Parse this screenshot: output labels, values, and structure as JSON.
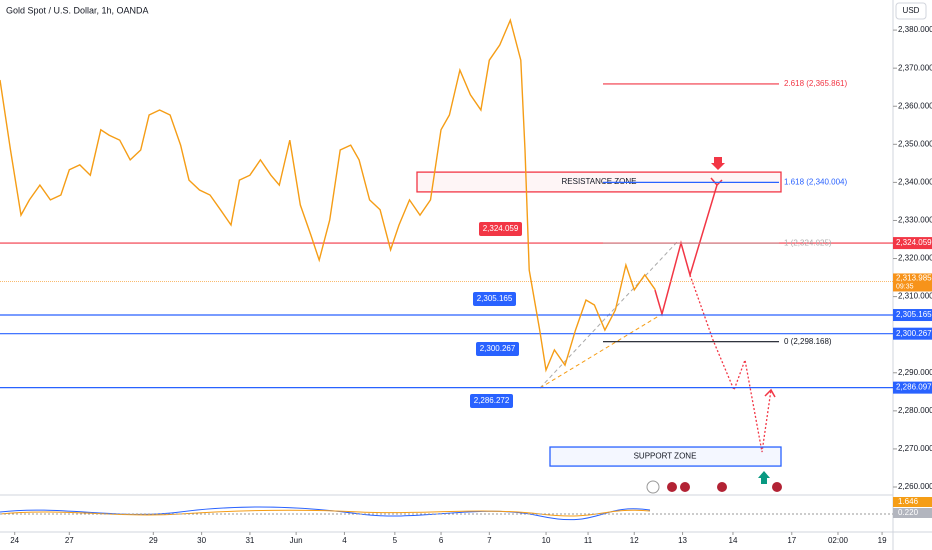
{
  "header": {
    "symbol": "Gold Spot / U.S. Dollar, 1h, OANDA",
    "currency": "USD"
  },
  "chart_data": {
    "type": "line",
    "xlim": [
      0,
      425.2
    ],
    "ylim": [
      2257.9,
      2387.9
    ],
    "xticks": [
      {
        "value": 7,
        "label": "24"
      },
      {
        "value": 33,
        "label": "27"
      },
      {
        "value": 73,
        "label": "29"
      },
      {
        "value": 96,
        "label": "30"
      },
      {
        "value": 119,
        "label": "31"
      },
      {
        "value": 141,
        "label": "Jun"
      },
      {
        "value": 164,
        "label": "4"
      },
      {
        "value": 188,
        "label": "5"
      },
      {
        "value": 210,
        "label": "6"
      },
      {
        "value": 233,
        "label": "7"
      },
      {
        "value": 260,
        "label": "10"
      },
      {
        "value": 280,
        "label": "11"
      },
      {
        "value": 302,
        "label": "12"
      },
      {
        "value": 325,
        "label": "13"
      },
      {
        "value": 349,
        "label": "14"
      },
      {
        "value": 377,
        "label": "17"
      },
      {
        "value": 399,
        "label": "02:00"
      },
      {
        "value": 420,
        "label": "19"
      }
    ],
    "yticks": [
      {
        "value": 2260,
        "label": "2,260.000"
      },
      {
        "value": 2270,
        "label": "2,270.000"
      },
      {
        "value": 2280,
        "label": "2,280.000"
      },
      {
        "value": 2290,
        "label": "2,290.000"
      },
      {
        "value": 2300,
        "label": "2,300.000"
      },
      {
        "value": 2310,
        "label": "2,310.000"
      },
      {
        "value": 2320,
        "label": "2,320.000"
      },
      {
        "value": 2330,
        "label": "2,330.000"
      },
      {
        "value": 2340,
        "label": "2,340.000"
      },
      {
        "value": 2350,
        "label": "2,350.000"
      },
      {
        "value": 2360,
        "label": "2,360.000"
      },
      {
        "value": 2370,
        "label": "2,370.000"
      },
      {
        "value": 2380,
        "label": "2,380.000"
      }
    ],
    "series": [
      {
        "name": "XAUUSD",
        "color": "#f59d16",
        "x": [
          0,
          5,
          10,
          14,
          19,
          24,
          29,
          33,
          38,
          43,
          48,
          52,
          57,
          62,
          67,
          71,
          76,
          81,
          86,
          90,
          95,
          100,
          105,
          110,
          114,
          119,
          124,
          129,
          133,
          138,
          143,
          148,
          152,
          157,
          162,
          167,
          171,
          176,
          181,
          186,
          190,
          195,
          200,
          205,
          210,
          214,
          219,
          224,
          229,
          233,
          238,
          243,
          248,
          250,
          252,
          257,
          260,
          264,
          269,
          274,
          279,
          283,
          288,
          293,
          298,
          302,
          307,
          312
        ],
        "values": [
          2366.9,
          2348.5,
          2331.4,
          2335.4,
          2339.3,
          2335.4,
          2336.7,
          2343.3,
          2344.6,
          2341.9,
          2353.8,
          2352.4,
          2351.1,
          2345.9,
          2348.5,
          2357.7,
          2359.0,
          2357.7,
          2349.8,
          2340.6,
          2338.0,
          2336.7,
          2332.8,
          2328.8,
          2340.6,
          2341.9,
          2345.9,
          2341.9,
          2339.3,
          2351.1,
          2334.1,
          2326.2,
          2319.6,
          2330.1,
          2348.5,
          2349.8,
          2345.9,
          2335.4,
          2332.8,
          2322.3,
          2328.8,
          2335.4,
          2331.4,
          2335.4,
          2353.8,
          2357.7,
          2369.5,
          2363.0,
          2359.0,
          2372.1,
          2376.1,
          2382.6,
          2372.1,
          2348.5,
          2317.0,
          2301.2,
          2290.7,
          2296.0,
          2292.0,
          2301.2,
          2309.1,
          2307.8,
          2301.2,
          2306.5,
          2318.3,
          2311.8,
          2315.7,
          2311.8
        ]
      }
    ],
    "levels": [
      {
        "color": "#f23645",
        "left": {
          "value": 2324.059,
          "label": "2,324.059"
        },
        "right": {
          "value": 2324.059,
          "label": "2,324.059"
        }
      },
      {
        "color": "#2962ff",
        "left": {
          "value": 2305.165,
          "label": "2,305.165"
        },
        "right": {
          "value": 2305.165,
          "label": "2,305.165"
        }
      },
      {
        "color": "#2962ff",
        "left": {
          "value": 2300.267,
          "label": "2,300.267"
        },
        "right": {
          "value": 2300.267,
          "label": "2,300.267"
        }
      },
      {
        "color": "#2962ff",
        "left": {
          "value": 2286.272,
          "label": "2,286.272"
        },
        "right": {
          "value": 2286.097,
          "label": "2,286.097"
        }
      }
    ],
    "current": {
      "value": 2313.985,
      "label": "2,313.985",
      "time": "09:35",
      "color": "#f7931a"
    },
    "fib": [
      {
        "value": 2365.861,
        "label": "2.618 (2,365.861)",
        "color": "#f23645"
      },
      {
        "value": 2340.004,
        "label": "1.618 (2,340.004)",
        "color": "#2962ff"
      },
      {
        "value": 2324.025,
        "label": "1 (2,324.025)",
        "color": "#b0b0b0"
      },
      {
        "value": 2298.168,
        "label": "0 (2,298.168)",
        "color": "#131722"
      }
    ],
    "zones": [
      {
        "label": "RESISTANCE ZONE",
        "top": 2342.7,
        "bottom": 2337.5,
        "color": "#f23645"
      },
      {
        "label": "SUPPORT ZONE",
        "top": 2270.5,
        "bottom": 2265.5,
        "color": "#2962ff"
      }
    ]
  },
  "indicator": {
    "macd": "1.646",
    "signal": "0.220"
  }
}
